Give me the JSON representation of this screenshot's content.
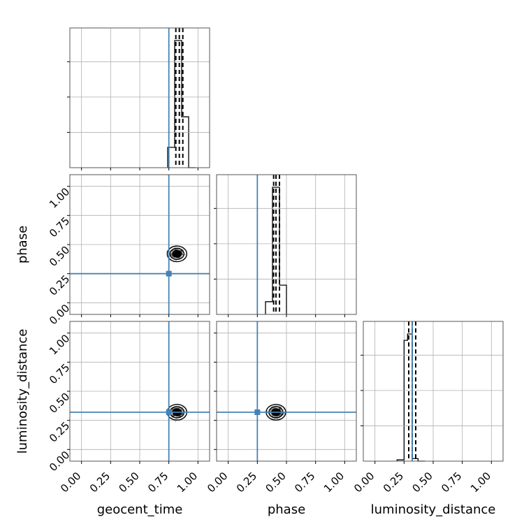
{
  "chart_data": {
    "type": "corner",
    "parameters": [
      "geocent_time",
      "phase",
      "luminosity_distance"
    ],
    "axis_labels": {
      "x": [
        "geocent_time",
        "phase",
        "luminosity_distance"
      ],
      "y": [
        "phase",
        "luminosity_distance"
      ]
    },
    "range": [
      -0.1,
      1.1
    ],
    "ticks": [
      0.0,
      0.25,
      0.5,
      0.75,
      1.0
    ],
    "tick_labels": [
      "0.00",
      "0.25",
      "0.50",
      "0.75",
      "1.00"
    ],
    "grid": true,
    "truth_color": "#4682b4",
    "truths": {
      "geocent_time": 0.75,
      "phase": 0.25,
      "luminosity_distance": 0.32
    },
    "histograms": [
      {
        "parameter": "geocent_time",
        "bin_edges": [
          0.74,
          0.8,
          0.86,
          0.92,
          0.98
        ],
        "counts": [
          0.16,
          1.0,
          0.4,
          0.0
        ],
        "quantiles": [
          0.81,
          0.84,
          0.87
        ]
      },
      {
        "parameter": "phase",
        "bin_edges": [
          0.32,
          0.38,
          0.44,
          0.5
        ],
        "counts": [
          0.1,
          1.0,
          0.23
        ],
        "quantiles": [
          0.39,
          0.41,
          0.44
        ]
      },
      {
        "parameter": "luminosity_distance",
        "bin_edges": [
          0.19,
          0.25,
          0.28,
          0.32,
          0.37,
          0.43
        ],
        "counts": [
          0.01,
          0.95,
          1.0,
          0.02,
          0.0
        ],
        "quantiles": [
          0.29,
          0.32,
          0.35
        ]
      }
    ],
    "scatter_2d": [
      {
        "x_param": "geocent_time",
        "y_param": "phase",
        "center": [
          0.82,
          0.42
        ]
      },
      {
        "x_param": "geocent_time",
        "y_param": "luminosity_distance",
        "center": [
          0.82,
          0.32
        ]
      },
      {
        "x_param": "phase",
        "y_param": "luminosity_distance",
        "center": [
          0.41,
          0.32
        ]
      }
    ]
  }
}
